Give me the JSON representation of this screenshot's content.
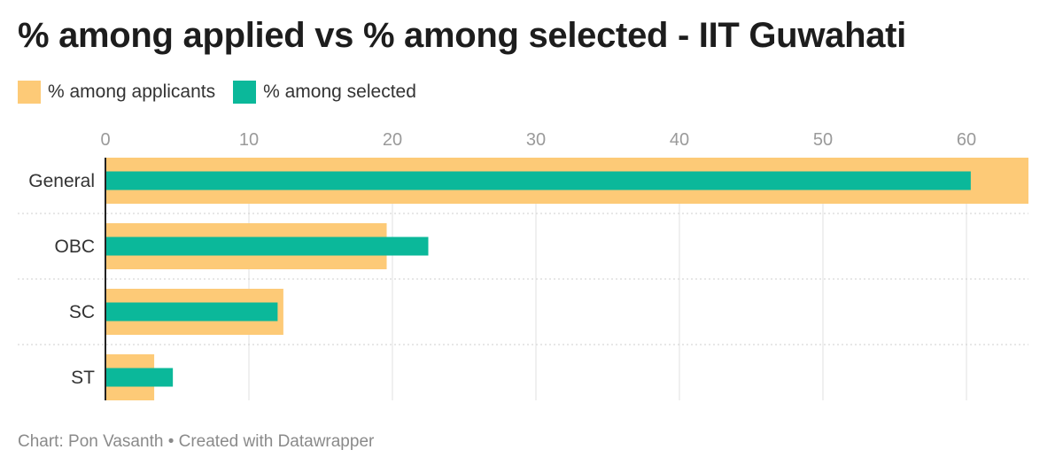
{
  "header": {
    "title": "% among applied vs % among selected - IIT Guwahati"
  },
  "footer": {
    "credit": "Chart: Pon Vasanth • Created with Datawrapper"
  },
  "colors": {
    "applicants": "#fdca77",
    "selected": "#0bb89a",
    "grid": "#e2e2e2",
    "tick": "#9a9a9a"
  },
  "chart_data": {
    "type": "bar",
    "orientation": "horizontal",
    "title": "% among applied vs % among selected - IIT Guwahati",
    "categories": [
      "General",
      "OBC",
      "SC",
      "ST"
    ],
    "series": [
      {
        "name": "% among applicants",
        "values": [
          65.0,
          19.6,
          12.4,
          3.4
        ]
      },
      {
        "name": "% among selected",
        "values": [
          60.3,
          22.5,
          12.0,
          4.7
        ]
      }
    ],
    "xlim": [
      0,
      64
    ],
    "xticks": [
      0,
      10,
      20,
      30,
      40,
      50,
      60
    ],
    "grid": true,
    "legend": "top-left"
  }
}
